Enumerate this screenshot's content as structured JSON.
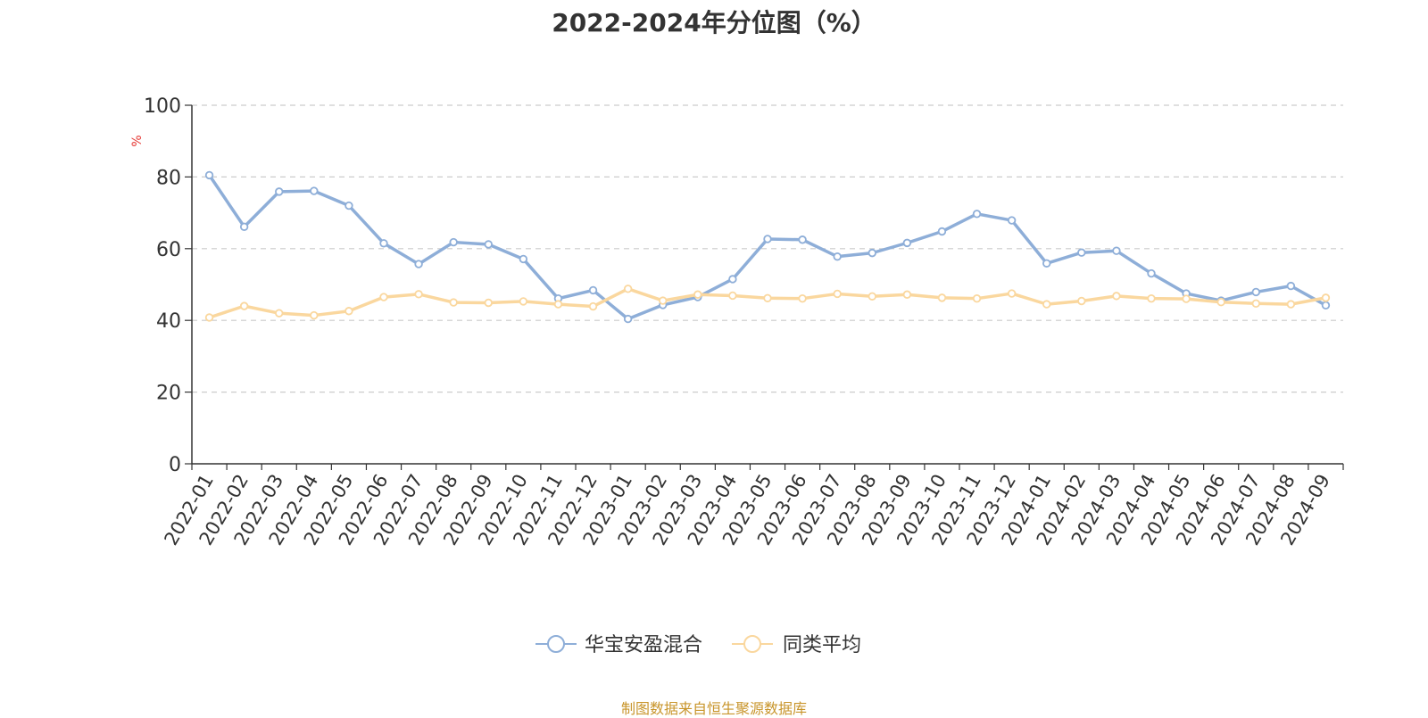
{
  "chart_data": {
    "type": "line",
    "title": "2022-2024年分位图（%）",
    "ylabel": "%",
    "ylim": [
      0,
      100
    ],
    "yticks": [
      0,
      20,
      40,
      60,
      80,
      100
    ],
    "grid": true,
    "legend_position": "bottom",
    "categories": [
      "2022-01",
      "2022-02",
      "2022-03",
      "2022-04",
      "2022-05",
      "2022-06",
      "2022-07",
      "2022-08",
      "2022-09",
      "2022-10",
      "2022-11",
      "2022-12",
      "2023-01",
      "2023-02",
      "2023-03",
      "2023-04",
      "2023-05",
      "2023-06",
      "2023-07",
      "2023-08",
      "2023-09",
      "2023-10",
      "2023-11",
      "2023-12",
      "2024-01",
      "2024-02",
      "2024-03",
      "2024-04",
      "2024-05",
      "2024-06",
      "2024-07",
      "2024-08",
      "2024-09"
    ],
    "series": [
      {
        "name": "华宝安盈混合",
        "color": "#8eaed8",
        "values": [
          80.5,
          66.1,
          75.9,
          76.1,
          72.0,
          61.5,
          55.7,
          61.8,
          61.2,
          57.1,
          46.1,
          48.4,
          40.4,
          44.3,
          46.5,
          51.5,
          62.7,
          62.5,
          57.8,
          58.8,
          61.6,
          64.8,
          69.7,
          67.9,
          55.9,
          58.9,
          59.4,
          53.1,
          47.5,
          45.5,
          47.9,
          49.6,
          44.2
        ]
      },
      {
        "name": "同类平均",
        "color": "#fad79e",
        "values": [
          40.8,
          44.0,
          42.0,
          41.4,
          42.6,
          46.5,
          47.3,
          45.0,
          44.9,
          45.3,
          44.5,
          43.9,
          48.8,
          45.5,
          47.2,
          46.9,
          46.2,
          46.1,
          47.4,
          46.7,
          47.2,
          46.3,
          46.1,
          47.5,
          44.5,
          45.4,
          46.8,
          46.1,
          46.0,
          45.1,
          44.7,
          44.5,
          46.3
        ]
      }
    ]
  },
  "footer": {
    "source": "制图数据来自恒生聚源数据库"
  }
}
